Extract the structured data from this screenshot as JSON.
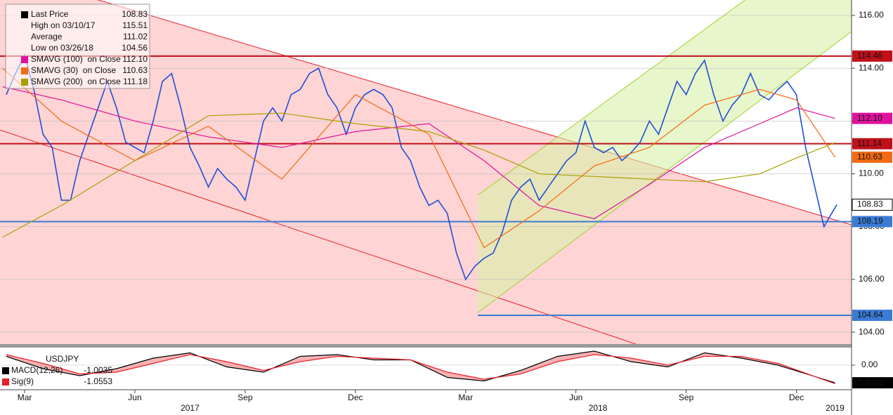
{
  "chart_data": [
    {
      "type": "line",
      "xlim": [
        1.33,
        24.5
      ],
      "ylim": [
        103.55,
        116.585
      ],
      "yticks": [
        {
          "value": 104,
          "label": "104.00"
        },
        {
          "value": 106,
          "label": "106.00"
        },
        {
          "value": 108,
          "label": "108.00"
        },
        {
          "value": 110,
          "label": "110.00"
        },
        {
          "value": 112,
          "label": "112.00"
        },
        {
          "value": 114,
          "label": "114.00"
        },
        {
          "value": 116,
          "label": "116.00"
        }
      ],
      "grid": true,
      "x": [
        1.5,
        1.75,
        2,
        2.25,
        2.5,
        2.75,
        3,
        3.25,
        3.5,
        3.75,
        4,
        4.25,
        4.5,
        4.75,
        5,
        5.25,
        5.5,
        5.75,
        6,
        6.25,
        6.5,
        6.75,
        7,
        7.25,
        7.5,
        7.75,
        8,
        8.25,
        8.5,
        8.75,
        9,
        9.25,
        9.5,
        9.75,
        10,
        10.25,
        10.5,
        10.75,
        11,
        11.25,
        11.5,
        11.75,
        12,
        12.25,
        12.5,
        12.75,
        13,
        13.25,
        13.5,
        13.75,
        14,
        14.25,
        14.5,
        14.75,
        15,
        15.25,
        15.5,
        15.75,
        16,
        16.25,
        16.5,
        16.75,
        17,
        17.25,
        17.5,
        17.75,
        18,
        18.25,
        18.5,
        18.75,
        19,
        19.25,
        19.5,
        19.75,
        20,
        20.25,
        20.5,
        20.75,
        21,
        21.25,
        21.5,
        21.75,
        22,
        22.25,
        22.5,
        22.75,
        23,
        23.25,
        23.5,
        23.75,
        24,
        24.1
      ],
      "series": [
        {
          "name": "Last Price",
          "color": "#1f4fd6",
          "last": 108.83,
          "tag": true,
          "values": [
            113.0,
            113.8,
            114.5,
            113.2,
            111.5,
            111.0,
            109.0,
            109.0,
            110.5,
            111.5,
            112.5,
            113.5,
            112.5,
            111.2,
            111.0,
            110.8,
            112.0,
            113.5,
            113.8,
            112.5,
            111.0,
            110.3,
            109.5,
            110.2,
            109.8,
            109.5,
            109.0,
            110.5,
            112.0,
            112.5,
            112.0,
            113.0,
            113.2,
            113.8,
            114.0,
            113.0,
            112.5,
            111.5,
            112.5,
            113.0,
            113.2,
            113.0,
            112.5,
            111.0,
            110.5,
            109.5,
            108.8,
            109.0,
            108.5,
            107.0,
            106.0,
            106.5,
            106.8,
            107.0,
            107.8,
            109.0,
            109.5,
            109.8,
            109.0,
            109.5,
            110.0,
            110.5,
            110.8,
            112.0,
            111.0,
            110.8,
            111.0,
            110.5,
            110.8,
            111.2,
            112.0,
            111.5,
            112.5,
            113.5,
            113.0,
            113.8,
            114.3,
            113.0,
            112.0,
            112.6,
            113.0,
            113.8,
            113.0,
            112.8,
            113.2,
            113.5,
            113.0,
            111.0,
            109.5,
            108.0,
            108.6,
            108.83
          ]
        },
        {
          "name": "SMAVG (100)  on Close",
          "color": "#e0119d",
          "last": 112.1,
          "last_label": "112.10",
          "tag": true,
          "x": [
            1.4,
            3,
            5,
            7,
            9,
            11,
            13,
            14.5,
            16,
            17.5,
            19,
            20.5,
            22,
            23,
            24.05
          ],
          "values": [
            113.3,
            112.8,
            112.0,
            111.4,
            111.0,
            111.6,
            111.9,
            110.5,
            108.8,
            108.3,
            109.6,
            111.0,
            111.9,
            112.5,
            112.1
          ]
        },
        {
          "name": "SMAVG (30)  on Close",
          "color": "#f26a12",
          "last": 110.63,
          "tag": true,
          "x": [
            1.4,
            3,
            5,
            7,
            9,
            11,
            13,
            14.5,
            16,
            17.5,
            19,
            20.5,
            22,
            23,
            24.05
          ],
          "values": [
            114.0,
            112.0,
            110.5,
            111.8,
            109.8,
            113.0,
            111.5,
            107.2,
            108.6,
            110.3,
            111.0,
            112.6,
            113.2,
            112.8,
            110.63
          ]
        },
        {
          "name": "SMAVG (200)  on Close",
          "color": "#a8a000",
          "last": 111.18,
          "tag": false,
          "x": [
            1.4,
            3,
            5,
            7,
            9,
            11,
            13,
            14.5,
            16,
            17.5,
            19,
            20.5,
            22,
            23,
            24.05
          ],
          "values": [
            107.6,
            108.8,
            110.5,
            112.2,
            112.3,
            111.9,
            111.6,
            110.9,
            110.0,
            109.9,
            109.8,
            109.7,
            110.0,
            110.6,
            111.18
          ]
        }
      ],
      "stats": [
        {
          "name": "High on 03/10/17",
          "value": 115.51
        },
        {
          "name": "Average",
          "value": 111.02
        },
        {
          "name": "Low on 03/26/18",
          "value": 104.56
        }
      ],
      "hlines": [
        {
          "value": 114.46,
          "color": "#c0111a",
          "from": 1.33
        },
        {
          "value": 111.14,
          "color": "#c0111a",
          "from": 1.33
        },
        {
          "value": 108.19,
          "color": "#3a7bd5",
          "from": 1.33
        },
        {
          "value": 104.64,
          "color": "#3a7bd5",
          "from": 14.33
        }
      ],
      "channels": [
        {
          "color": "#e8202a",
          "fill": "#ffcfcf",
          "upper": [
            [
              4.01,
              116.585
            ],
            [
              24.5,
              108.07
            ]
          ],
          "lower": [
            [
              1.33,
              111.66
            ],
            [
              18.63,
              103.55
            ]
          ]
        },
        {
          "color": "#a4d12c",
          "fill": "#d8f0a8",
          "upper": [
            [
              14.33,
              109.19
            ],
            [
              21.6,
              116.585
            ]
          ],
          "lower": [
            [
              14.33,
              104.74
            ],
            [
              24.5,
              115.39
            ]
          ]
        }
      ]
    },
    {
      "type": "macd",
      "title": "USDJPY",
      "xlim": [
        1.33,
        24.5
      ],
      "ylim": [
        -1.4,
        1.0
      ],
      "yticks": [
        {
          "value": 0,
          "label": "0.00"
        }
      ],
      "x": [
        1.5,
        2.5,
        3.5,
        4.5,
        5.5,
        6.5,
        7.5,
        8.5,
        9.5,
        10.5,
        11.5,
        12.5,
        13.5,
        14.5,
        15.5,
        16.5,
        17.5,
        18.5,
        19.5,
        20.5,
        21.5,
        22.5,
        24.05
      ],
      "series": [
        {
          "name": "MACD(12,26)",
          "color": "#000000",
          "last": -1.0035,
          "tag": true,
          "values": [
            0.5,
            -0.2,
            -0.6,
            -0.2,
            0.4,
            0.7,
            -0.1,
            -0.4,
            0.5,
            0.6,
            0.3,
            0.3,
            -0.7,
            -0.9,
            -0.3,
            0.5,
            0.8,
            0.2,
            -0.1,
            0.7,
            0.4,
            0.0,
            -1.0035
          ]
        },
        {
          "name": "Sig(9)",
          "color": "#e8202a",
          "last": -1.0553,
          "tag": false,
          "values": [
            0.6,
            0.1,
            -0.5,
            -0.4,
            0.1,
            0.6,
            0.2,
            -0.3,
            0.2,
            0.5,
            0.4,
            0.3,
            -0.4,
            -0.8,
            -0.5,
            0.2,
            0.6,
            0.4,
            0.0,
            0.5,
            0.5,
            0.1,
            -1.0553
          ]
        }
      ],
      "xticks": [
        {
          "value": 2,
          "label": "Mar"
        },
        {
          "value": 5,
          "label": "Jun"
        },
        {
          "value": 8,
          "label": "Sep"
        },
        {
          "value": 11,
          "label": "Dec"
        },
        {
          "value": 14,
          "label": "Mar"
        },
        {
          "value": 17,
          "label": "Jun"
        },
        {
          "value": 20,
          "label": "Sep"
        },
        {
          "value": 23,
          "label": "Dec"
        }
      ],
      "year_ticks": [
        {
          "value": 6.5,
          "label": "2017"
        },
        {
          "value": 17.6,
          "label": "2018"
        },
        {
          "value": 24.05,
          "label": "2019"
        }
      ]
    }
  ]
}
